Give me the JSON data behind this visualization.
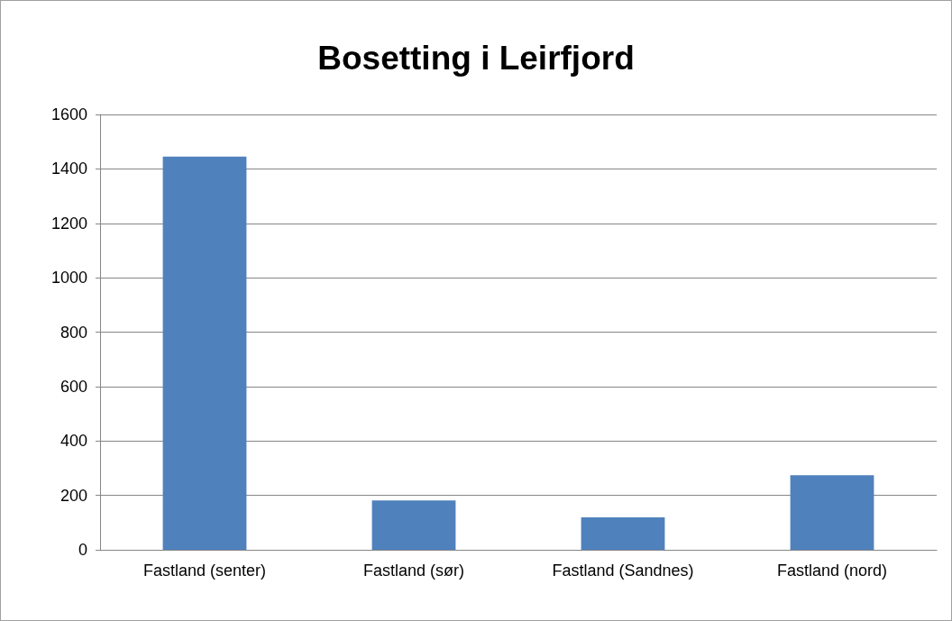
{
  "chart_data": {
    "type": "bar",
    "title": "Bosetting i Leirfjord",
    "categories": [
      "Fastland (senter)",
      "Fastland (sør)",
      "Fastland (Sandnes)",
      "Fastland (nord)"
    ],
    "values": [
      1445,
      181,
      119,
      274
    ],
    "color": "#4f81bd",
    "ylim": [
      0,
      1600
    ],
    "yticks": [
      0,
      200,
      400,
      600,
      800,
      1000,
      1200,
      1400,
      1600
    ],
    "grid": "y"
  }
}
